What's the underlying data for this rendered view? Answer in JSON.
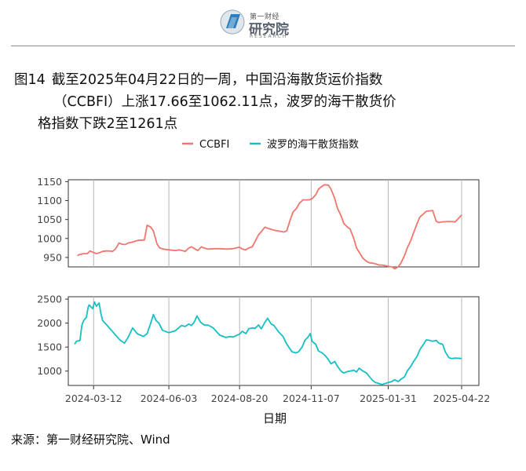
{
  "logo": {
    "top_text": "第一财经",
    "name": "研究院",
    "sub": "RESEARCH"
  },
  "caption": {
    "number": "图14",
    "line1": "截至2025年04月22日的一周，中国沿海散货运价指数",
    "line2": "（CCBFI）上涨17.66至1062.11点，波罗的海干散货价",
    "line3": "格指数下跌2至1261点"
  },
  "source": "来源：第一财经研究院、Wind",
  "colors": {
    "ccbfi": "#f0766e",
    "bdi": "#16bfc4"
  },
  "chart_data": {
    "type": "line",
    "xlabel": "日期",
    "x_ticks": [
      "2024-03-12",
      "2024-06-03",
      "2024-08-20",
      "2024-11-07",
      "2025-01-31",
      "2025-04-22"
    ],
    "x_range": [
      "2024-02-20",
      "2025-04-22"
    ],
    "legend_position": "top",
    "grid": "vertical lines at x ticks",
    "series": [
      {
        "name": "CCBFI",
        "panel": "top",
        "ylim": [
          925,
          1155
        ],
        "y_ticks": [
          950,
          1000,
          1050,
          1100,
          1150
        ],
        "points": [
          [
            "2024-02-23",
            955
          ],
          [
            "2024-02-26",
            958
          ],
          [
            "2024-03-01",
            960
          ],
          [
            "2024-03-05",
            960
          ],
          [
            "2024-03-08",
            967
          ],
          [
            "2024-03-12",
            963
          ],
          [
            "2024-03-15",
            960
          ],
          [
            "2024-03-19",
            963
          ],
          [
            "2024-03-22",
            966
          ],
          [
            "2024-03-26",
            967
          ],
          [
            "2024-03-29",
            967
          ],
          [
            "2024-04-02",
            966
          ],
          [
            "2024-04-05",
            972
          ],
          [
            "2024-04-09",
            988
          ],
          [
            "2024-04-12",
            985
          ],
          [
            "2024-04-16",
            984
          ],
          [
            "2024-04-19",
            988
          ],
          [
            "2024-04-23",
            990
          ],
          [
            "2024-04-30",
            995
          ],
          [
            "2024-05-07",
            996
          ],
          [
            "2024-05-10",
            1035
          ],
          [
            "2024-05-14",
            1030
          ],
          [
            "2024-05-17",
            1020
          ],
          [
            "2024-05-21",
            985
          ],
          [
            "2024-05-24",
            975
          ],
          [
            "2024-05-28",
            972
          ],
          [
            "2024-05-31",
            971
          ],
          [
            "2024-06-04",
            970
          ],
          [
            "2024-06-07",
            969
          ],
          [
            "2024-06-11",
            968
          ],
          [
            "2024-06-14",
            970
          ],
          [
            "2024-06-18",
            968
          ],
          [
            "2024-06-21",
            966
          ],
          [
            "2024-06-25",
            975
          ],
          [
            "2024-06-28",
            978
          ],
          [
            "2024-07-02",
            972
          ],
          [
            "2024-07-05",
            968
          ],
          [
            "2024-07-09",
            978
          ],
          [
            "2024-07-12",
            975
          ],
          [
            "2024-07-16",
            972
          ],
          [
            "2024-07-23",
            973
          ],
          [
            "2024-07-30",
            973
          ],
          [
            "2024-08-06",
            972
          ],
          [
            "2024-08-13",
            973
          ],
          [
            "2024-08-16",
            975
          ],
          [
            "2024-08-20",
            977
          ],
          [
            "2024-08-23",
            972
          ],
          [
            "2024-08-27",
            970
          ],
          [
            "2024-08-30",
            975
          ],
          [
            "2024-09-03",
            978
          ],
          [
            "2024-09-06",
            992
          ],
          [
            "2024-09-10",
            1010
          ],
          [
            "2024-09-13",
            1018
          ],
          [
            "2024-09-17",
            1030
          ],
          [
            "2024-09-20",
            1027
          ],
          [
            "2024-09-27",
            1022
          ],
          [
            "2024-10-08",
            1017
          ],
          [
            "2024-10-11",
            1020
          ],
          [
            "2024-10-15",
            1050
          ],
          [
            "2024-10-18",
            1070
          ],
          [
            "2024-10-22",
            1080
          ],
          [
            "2024-10-25",
            1093
          ],
          [
            "2024-10-29",
            1102
          ],
          [
            "2024-11-05",
            1102
          ],
          [
            "2024-11-08",
            1105
          ],
          [
            "2024-11-12",
            1115
          ],
          [
            "2024-11-15",
            1130
          ],
          [
            "2024-11-19",
            1138
          ],
          [
            "2024-11-22",
            1142
          ],
          [
            "2024-11-26",
            1141
          ],
          [
            "2024-11-29",
            1130
          ],
          [
            "2024-12-03",
            1105
          ],
          [
            "2024-12-06",
            1080
          ],
          [
            "2024-12-10",
            1060
          ],
          [
            "2024-12-13",
            1040
          ],
          [
            "2024-12-17",
            1030
          ],
          [
            "2024-12-20",
            1025
          ],
          [
            "2024-12-24",
            1000
          ],
          [
            "2024-12-27",
            975
          ],
          [
            "2024-12-31",
            960
          ],
          [
            "2025-01-03",
            948
          ],
          [
            "2025-01-07",
            940
          ],
          [
            "2025-01-10",
            936
          ],
          [
            "2025-01-14",
            935
          ],
          [
            "2025-01-17",
            933
          ],
          [
            "2025-01-21",
            930
          ],
          [
            "2025-01-24",
            930
          ],
          [
            "2025-02-04",
            925
          ],
          [
            "2025-02-07",
            920
          ],
          [
            "2025-02-11",
            925
          ],
          [
            "2025-02-14",
            935
          ],
          [
            "2025-02-18",
            955
          ],
          [
            "2025-02-21",
            975
          ],
          [
            "2025-02-25",
            995
          ],
          [
            "2025-02-28",
            1015
          ],
          [
            "2025-03-04",
            1040
          ],
          [
            "2025-03-07",
            1057
          ],
          [
            "2025-03-11",
            1065
          ],
          [
            "2025-03-14",
            1072
          ],
          [
            "2025-03-18",
            1073
          ],
          [
            "2025-03-21",
            1074
          ],
          [
            "2025-03-25",
            1045
          ],
          [
            "2025-03-28",
            1042
          ],
          [
            "2025-04-01",
            1044
          ],
          [
            "2025-04-08",
            1045
          ],
          [
            "2025-04-15",
            1044
          ],
          [
            "2025-04-22",
            1062
          ]
        ]
      },
      {
        "name": "波罗的海干散货指数",
        "panel": "bottom",
        "ylim": [
          700,
          2550
        ],
        "y_ticks": [
          1000,
          1500,
          2000,
          2500
        ],
        "points": [
          [
            "2024-02-20",
            1560
          ],
          [
            "2024-02-22",
            1620
          ],
          [
            "2024-02-26",
            1640
          ],
          [
            "2024-02-28",
            1950
          ],
          [
            "2024-03-01",
            2050
          ],
          [
            "2024-03-04",
            2120
          ],
          [
            "2024-03-06",
            2330
          ],
          [
            "2024-03-07",
            2380
          ],
          [
            "2024-03-11",
            2300
          ],
          [
            "2024-03-13",
            2440
          ],
          [
            "2024-03-15",
            2350
          ],
          [
            "2024-03-18",
            2420
          ],
          [
            "2024-03-20",
            2200
          ],
          [
            "2024-03-22",
            2050
          ],
          [
            "2024-03-27",
            1950
          ],
          [
            "2024-04-03",
            1800
          ],
          [
            "2024-04-10",
            1650
          ],
          [
            "2024-04-15",
            1580
          ],
          [
            "2024-04-19",
            1700
          ],
          [
            "2024-04-24",
            1900
          ],
          [
            "2024-04-29",
            1780
          ],
          [
            "2024-05-06",
            1720
          ],
          [
            "2024-05-10",
            1780
          ],
          [
            "2024-05-14",
            2000
          ],
          [
            "2024-05-17",
            2180
          ],
          [
            "2024-05-20",
            2050
          ],
          [
            "2024-05-23",
            2000
          ],
          [
            "2024-05-27",
            1850
          ],
          [
            "2024-06-03",
            1800
          ],
          [
            "2024-06-10",
            1840
          ],
          [
            "2024-06-17",
            1950
          ],
          [
            "2024-06-21",
            1930
          ],
          [
            "2024-06-25",
            1980
          ],
          [
            "2024-06-28",
            1950
          ],
          [
            "2024-07-01",
            2020
          ],
          [
            "2024-07-04",
            2150
          ],
          [
            "2024-07-08",
            2020
          ],
          [
            "2024-07-12",
            1960
          ],
          [
            "2024-07-16",
            1960
          ],
          [
            "2024-07-22",
            1900
          ],
          [
            "2024-07-29",
            1750
          ],
          [
            "2024-08-05",
            1700
          ],
          [
            "2024-08-09",
            1720
          ],
          [
            "2024-08-13",
            1710
          ],
          [
            "2024-08-20",
            1770
          ],
          [
            "2024-08-23",
            1830
          ],
          [
            "2024-08-27",
            1780
          ],
          [
            "2024-08-30",
            1880
          ],
          [
            "2024-09-03",
            1900
          ],
          [
            "2024-09-06",
            1890
          ],
          [
            "2024-09-10",
            1960
          ],
          [
            "2024-09-13",
            1880
          ],
          [
            "2024-09-17",
            2020
          ],
          [
            "2024-09-20",
            2100
          ],
          [
            "2024-09-24",
            1980
          ],
          [
            "2024-09-27",
            1950
          ],
          [
            "2024-10-02",
            1820
          ],
          [
            "2024-10-07",
            1720
          ],
          [
            "2024-10-10",
            1600
          ],
          [
            "2024-10-14",
            1480
          ],
          [
            "2024-10-17",
            1400
          ],
          [
            "2024-10-21",
            1380
          ],
          [
            "2024-10-24",
            1400
          ],
          [
            "2024-10-28",
            1500
          ],
          [
            "2024-10-31",
            1640
          ],
          [
            "2024-11-04",
            1720
          ],
          [
            "2024-11-06",
            1780
          ],
          [
            "2024-11-08",
            1620
          ],
          [
            "2024-11-12",
            1560
          ],
          [
            "2024-11-15",
            1420
          ],
          [
            "2024-11-19",
            1380
          ],
          [
            "2024-11-22",
            1330
          ],
          [
            "2024-11-26",
            1240
          ],
          [
            "2024-11-29",
            1150
          ],
          [
            "2024-12-03",
            1200
          ],
          [
            "2024-12-06",
            1100
          ],
          [
            "2024-12-10",
            1000
          ],
          [
            "2024-12-13",
            960
          ],
          [
            "2024-12-17",
            990
          ],
          [
            "2024-12-20",
            1000
          ],
          [
            "2024-12-24",
            1020
          ],
          [
            "2024-12-27",
            980
          ],
          [
            "2024-12-30",
            1060
          ],
          [
            "2025-01-03",
            1000
          ],
          [
            "2025-01-07",
            960
          ],
          [
            "2025-01-10",
            890
          ],
          [
            "2025-01-14",
            800
          ],
          [
            "2025-01-17",
            760
          ],
          [
            "2025-01-21",
            740
          ],
          [
            "2025-01-24",
            720
          ],
          [
            "2025-01-31",
            760
          ],
          [
            "2025-02-04",
            780
          ],
          [
            "2025-02-07",
            820
          ],
          [
            "2025-02-11",
            780
          ],
          [
            "2025-02-14",
            830
          ],
          [
            "2025-02-18",
            880
          ],
          [
            "2025-02-21",
            1000
          ],
          [
            "2025-02-25",
            1100
          ],
          [
            "2025-02-28",
            1200
          ],
          [
            "2025-03-04",
            1310
          ],
          [
            "2025-03-07",
            1450
          ],
          [
            "2025-03-11",
            1560
          ],
          [
            "2025-03-14",
            1650
          ],
          [
            "2025-03-18",
            1640
          ],
          [
            "2025-03-21",
            1620
          ],
          [
            "2025-03-25",
            1640
          ],
          [
            "2025-03-28",
            1580
          ],
          [
            "2025-04-01",
            1560
          ],
          [
            "2025-04-04",
            1400
          ],
          [
            "2025-04-08",
            1280
          ],
          [
            "2025-04-11",
            1260
          ],
          [
            "2025-04-15",
            1270
          ],
          [
            "2025-04-22",
            1261
          ]
        ]
      }
    ]
  }
}
